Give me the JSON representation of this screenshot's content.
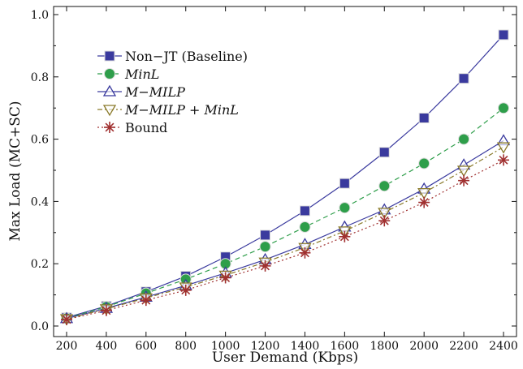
{
  "chart_data": {
    "type": "line",
    "title": "",
    "xlabel": "User Demand (Kbps)",
    "ylabel": "Max Load (MC+SC)",
    "x": [
      200,
      400,
      600,
      800,
      1000,
      1200,
      1400,
      1600,
      1800,
      2000,
      2200,
      2400
    ],
    "x_ticks": [
      "200",
      "400",
      "600",
      "800",
      "1000",
      "1200",
      "1400",
      "1600",
      "1800",
      "2000",
      "2200",
      "2400"
    ],
    "ylim": [
      0.0,
      1.0
    ],
    "y_ticks": [
      "0.0",
      "0.2",
      "0.4",
      "0.6",
      "0.8",
      "1.0"
    ],
    "grid": false,
    "legend_position": "top-left",
    "series": [
      {
        "name": "Non−JT (Baseline)",
        "italic": false,
        "marker": "square",
        "line": "solid",
        "color": "#3a3a9e",
        "values": [
          0.027,
          0.064,
          0.11,
          0.16,
          0.222,
          0.292,
          0.37,
          0.458,
          0.558,
          0.668,
          0.795,
          0.935
        ]
      },
      {
        "name": "MinL",
        "italic": true,
        "marker": "circle",
        "line": "dashed",
        "color": "#2e9e4a",
        "values": [
          0.025,
          0.062,
          0.105,
          0.15,
          0.2,
          0.255,
          0.318,
          0.38,
          0.45,
          0.522,
          0.6,
          0.7
        ]
      },
      {
        "name": "M−MILP",
        "italic": true,
        "marker": "triangle-up",
        "line": "solid",
        "color": "#3a3a9e",
        "values": [
          0.024,
          0.057,
          0.093,
          0.13,
          0.17,
          0.213,
          0.262,
          0.318,
          0.373,
          0.44,
          0.517,
          0.595
        ]
      },
      {
        "name": "M−MILP + MinL",
        "italic": true,
        "marker": "triangle-down",
        "line": "dashdot",
        "color": "#8a7a2a",
        "values": [
          0.023,
          0.055,
          0.09,
          0.125,
          0.163,
          0.205,
          0.252,
          0.305,
          0.365,
          0.428,
          0.5,
          0.575
        ]
      },
      {
        "name": "Bound",
        "italic": false,
        "marker": "asterisk",
        "line": "dotted",
        "color": "#a03030",
        "values": [
          0.021,
          0.05,
          0.083,
          0.115,
          0.155,
          0.193,
          0.235,
          0.287,
          0.338,
          0.397,
          0.467,
          0.533
        ]
      }
    ]
  }
}
